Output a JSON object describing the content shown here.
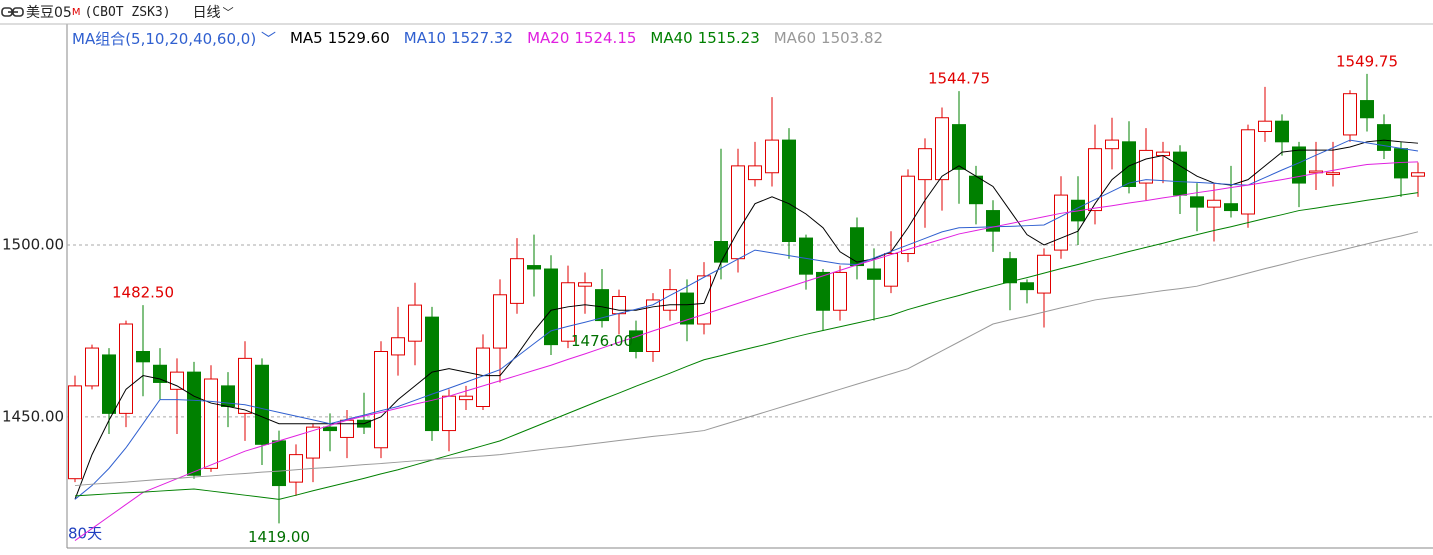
{
  "header": {
    "symbol": "美豆05",
    "flag": "M",
    "code": "(CBOT ZSK3)",
    "period": "日线"
  },
  "chart_data": {
    "type": "candlestick",
    "indicator_label": "MA组合(5,10,20,40,60,0)",
    "days_label": "80天",
    "ylim": [
      1413,
      1557
    ],
    "yticks": [
      {
        "value": 1450,
        "label": "1450.00"
      },
      {
        "value": 1500,
        "label": "1500.00"
      }
    ],
    "grid": true,
    "up_color": "#e00000",
    "down_color": "#008000",
    "open": [
      1432,
      1459,
      1468,
      1451,
      1469,
      1465,
      1458,
      1463,
      1435,
      1459,
      1451,
      1465,
      1443,
      1431,
      1438,
      1447,
      1444,
      1449,
      1441,
      1468,
      1472,
      1479,
      1446,
      1455,
      1453,
      1470,
      1483,
      1494,
      1493,
      1472,
      1488,
      1487,
      1480,
      1475,
      1469,
      1481,
      1486,
      1477,
      1501,
      1496,
      1519,
      1521,
      1530.5,
      1502,
      1492,
      1481,
      1505,
      1493,
      1488,
      1497.5,
      1519,
      1519,
      1535,
      1520,
      1510,
      1496,
      1489,
      1486,
      1498.5,
      1513,
      1510,
      1528,
      1530,
      1518,
      1526,
      1527,
      1514,
      1511,
      1512,
      1509,
      1533,
      1536,
      1528.5,
      1521,
      1520.5,
      1532,
      1542,
      1535,
      1528,
      1520
    ],
    "high": [
      1462,
      1471,
      1470,
      1478,
      1482.5,
      1470,
      1467,
      1466,
      1465,
      1463,
      1472,
      1467,
      1446,
      1442,
      1448,
      1451,
      1452,
      1457,
      1472,
      1482,
      1489,
      1482,
      1458,
      1459,
      1474,
      1490,
      1502,
      1503,
      1497,
      1494,
      1492,
      1493,
      1487,
      1478,
      1486,
      1493,
      1490,
      1495,
      1528,
      1528,
      1530,
      1543,
      1534,
      1503,
      1493,
      1494,
      1508,
      1499,
      1504,
      1522,
      1531,
      1540,
      1544.75,
      1523,
      1513,
      1498,
      1490,
      1499,
      1520,
      1520,
      1535,
      1537,
      1536,
      1534,
      1530,
      1529,
      1518,
      1518,
      1523,
      1535,
      1546,
      1538,
      1530,
      1530,
      1530,
      1545,
      1549.75,
      1538,
      1530,
      1524
    ],
    "low": [
      1431,
      1458,
      1445,
      1447,
      1456,
      1455,
      1445,
      1432,
      1434,
      1447,
      1443,
      1436,
      1419,
      1427,
      1431,
      1440,
      1438,
      1445,
      1438,
      1462,
      1465,
      1443,
      1440,
      1452,
      1452,
      1460,
      1480,
      1485,
      1468,
      1470,
      1480,
      1476,
      1474,
      1467,
      1466,
      1478,
      1472,
      1474,
      1490,
      1492,
      1517,
      1517,
      1496,
      1487,
      1475,
      1478,
      1490,
      1478,
      1486,
      1495,
      1505,
      1510,
      1512,
      1506,
      1498,
      1481,
      1483,
      1476,
      1496,
      1500,
      1506,
      1522,
      1515,
      1513,
      1518,
      1509,
      1504,
      1501,
      1508,
      1505,
      1530,
      1526,
      1511,
      1516,
      1517,
      1530,
      1533,
      1525,
      1514,
      1514
    ],
    "close": [
      1459,
      1470,
      1451,
      1477,
      1466,
      1460,
      1463,
      1433,
      1461,
      1453,
      1467,
      1442,
      1430,
      1439,
      1447,
      1446,
      1449,
      1447,
      1469,
      1473,
      1482.5,
      1446,
      1456,
      1456,
      1470,
      1485.5,
      1496,
      1493,
      1471,
      1489,
      1489,
      1478,
      1485,
      1469,
      1484,
      1487,
      1477,
      1491,
      1495,
      1523,
      1523,
      1530.5,
      1501,
      1491.5,
      1481,
      1492,
      1494,
      1490,
      1497.5,
      1520,
      1528,
      1537,
      1522,
      1512,
      1504,
      1489,
      1487,
      1497,
      1514.5,
      1507,
      1528,
      1530.5,
      1517,
      1527.5,
      1527,
      1514.5,
      1511,
      1513,
      1510,
      1533.5,
      1536,
      1530,
      1518,
      1521.5,
      1521,
      1544,
      1537,
      1527.5,
      1519.5,
      1521
    ],
    "series": [
      {
        "name": "MA5",
        "color": "#000000",
        "value_label": "1529.60",
        "values": [
          1426,
          1439,
          1449,
          1458,
          1462,
          1461,
          1459,
          1456,
          1454,
          1453,
          1452,
          1450,
          1448,
          1448,
          1448,
          1448,
          1448,
          1448,
          1450,
          1455,
          1459,
          1463,
          1464,
          1463,
          1462,
          1462,
          1468,
          1475,
          1481,
          1482,
          1482.6,
          1482,
          1481,
          1481,
          1482,
          1482.6,
          1482.6,
          1483,
          1495,
          1504,
          1512,
          1514,
          1512,
          1509,
          1505,
          1498,
          1495,
          1496,
          1498,
          1505,
          1513,
          1520,
          1523,
          1520,
          1517,
          1510,
          1503,
          1500,
          1502,
          1504,
          1512,
          1519,
          1523,
          1525,
          1526,
          1523,
          1520,
          1518,
          1517.4,
          1519,
          1523,
          1527,
          1527.6,
          1527.6,
          1527.6,
          1528.5,
          1530,
          1530.5,
          1530,
          1529.6
        ]
      },
      {
        "name": "MA10",
        "color": "#3060d0",
        "value_label": "1527.32",
        "values": [
          1426,
          1430,
          1435,
          1441,
          1448,
          1455,
          1455,
          1454.8,
          1454.5,
          1454,
          1453.5,
          1452.4,
          1451.3,
          1450.2,
          1449.1,
          1448,
          1449.3,
          1450.5,
          1451.8,
          1453,
          1454.8,
          1456.6,
          1458.3,
          1460.1,
          1461.9,
          1463.7,
          1467.5,
          1471.3,
          1475,
          1476.3,
          1477.5,
          1478.8,
          1480.1,
          1481.3,
          1482.6,
          1485.3,
          1487.9,
          1490.6,
          1493.2,
          1495.9,
          1498.5,
          1497.7,
          1496.9,
          1496.1,
          1495.3,
          1494.5,
          1494.3,
          1496.2,
          1498.1,
          1500,
          1501.9,
          1503.8,
          1505,
          1505.1,
          1505.3,
          1505.4,
          1505.6,
          1505.8,
          1508.3,
          1510.8,
          1513.2,
          1515.6,
          1518,
          1519,
          1518.7,
          1518.4,
          1518.2,
          1517.9,
          1517.6,
          1517.4,
          1519.6,
          1521.8,
          1523.9,
          1526.1,
          1528.3,
          1530.5,
          1529.7,
          1528.9,
          1528.1,
          1527.32
        ]
      },
      {
        "name": "MA20",
        "color": "#e020e0",
        "value_label": "1524.15",
        "values": [
          1414,
          1417.5,
          1421,
          1424.5,
          1428,
          1430,
          1432,
          1434,
          1436,
          1438,
          1440,
          1441.5,
          1443,
          1444.5,
          1446,
          1447.5,
          1449,
          1450.2,
          1451.3,
          1452.5,
          1453.7,
          1454.8,
          1456,
          1457.5,
          1459,
          1460.5,
          1462,
          1463.5,
          1465,
          1466.7,
          1468.3,
          1470,
          1471.7,
          1473.3,
          1475,
          1476.6,
          1478.2,
          1479.8,
          1481.4,
          1483,
          1484.6,
          1486.2,
          1487.8,
          1489.4,
          1491,
          1492.6,
          1494.2,
          1495.7,
          1497.2,
          1498.7,
          1500.2,
          1501.7,
          1503.2,
          1504.2,
          1505.2,
          1506.2,
          1507.2,
          1508.2,
          1509.2,
          1509.9,
          1510.7,
          1511.4,
          1512.2,
          1512.9,
          1513.7,
          1514.4,
          1515.2,
          1515.9,
          1516.7,
          1517.4,
          1518.2,
          1519,
          1519.9,
          1520.8,
          1521.7,
          1522.6,
          1523.4,
          1523.7,
          1524,
          1524.15
        ]
      },
      {
        "name": "MA40",
        "color": "#008000",
        "value_label": "1515.23",
        "values": [
          1427,
          1427.3,
          1427.6,
          1427.9,
          1428.1,
          1428.4,
          1428.7,
          1429,
          1428.4,
          1427.8,
          1427.2,
          1426.6,
          1426,
          1427.2,
          1428.5,
          1429.7,
          1430.9,
          1432.1,
          1433.4,
          1434.6,
          1436,
          1437.4,
          1438.8,
          1440.2,
          1441.6,
          1443,
          1445,
          1447,
          1449,
          1451,
          1453,
          1455,
          1456.9,
          1458.9,
          1460.8,
          1462.7,
          1464.7,
          1466.6,
          1467.8,
          1469.1,
          1470.3,
          1471.5,
          1472.8,
          1474,
          1475.1,
          1476.2,
          1477.3,
          1478.4,
          1479.5,
          1481.2,
          1482.6,
          1484,
          1485.3,
          1486.7,
          1488,
          1489.3,
          1490.5,
          1491.8,
          1493.1,
          1494.3,
          1495.6,
          1496.8,
          1498.1,
          1499.3,
          1500.5,
          1501.8,
          1503,
          1504.2,
          1505.3,
          1506.5,
          1507.7,
          1508.8,
          1510,
          1510.7,
          1511.5,
          1512.2,
          1513,
          1513.7,
          1514.5,
          1515.23
        ]
      },
      {
        "name": "MA60",
        "color": "#999999",
        "value_label": "1503.82",
        "values": [
          1430,
          1430.4,
          1430.7,
          1431,
          1431.4,
          1431.8,
          1432.1,
          1432.5,
          1432.8,
          1433.2,
          1433.5,
          1433.9,
          1434.2,
          1434.6,
          1435,
          1435.3,
          1435.7,
          1436.1,
          1436.4,
          1436.8,
          1437.2,
          1437.5,
          1437.9,
          1438.3,
          1438.6,
          1439,
          1439.6,
          1440.2,
          1440.8,
          1441.3,
          1441.9,
          1442.5,
          1443.1,
          1443.7,
          1444.3,
          1444.8,
          1445.4,
          1446,
          1447.5,
          1449,
          1450.5,
          1452,
          1453.5,
          1455,
          1456.5,
          1458,
          1459.5,
          1461,
          1462.5,
          1464,
          1466.6,
          1469.2,
          1471.8,
          1474.4,
          1477,
          1478.2,
          1479.3,
          1480.5,
          1481.7,
          1482.8,
          1484,
          1484.7,
          1485.3,
          1486,
          1486.7,
          1487.3,
          1488,
          1489.3,
          1490.5,
          1491.8,
          1493.1,
          1494.3,
          1495.6,
          1496.8,
          1497.9,
          1499.1,
          1500.3,
          1501.5,
          1502.6,
          1503.82
        ]
      }
    ],
    "annotations": [
      {
        "value": 1482.5,
        "label": "1482.50",
        "kind": "high"
      },
      {
        "value": 1544.75,
        "label": "1544.75",
        "kind": "high"
      },
      {
        "value": 1549.75,
        "label": "1549.75",
        "kind": "high"
      },
      {
        "value": 1419,
        "label": "1419.00",
        "kind": "low"
      },
      {
        "value": 1476,
        "label": "1476.00",
        "kind": "low"
      }
    ]
  }
}
